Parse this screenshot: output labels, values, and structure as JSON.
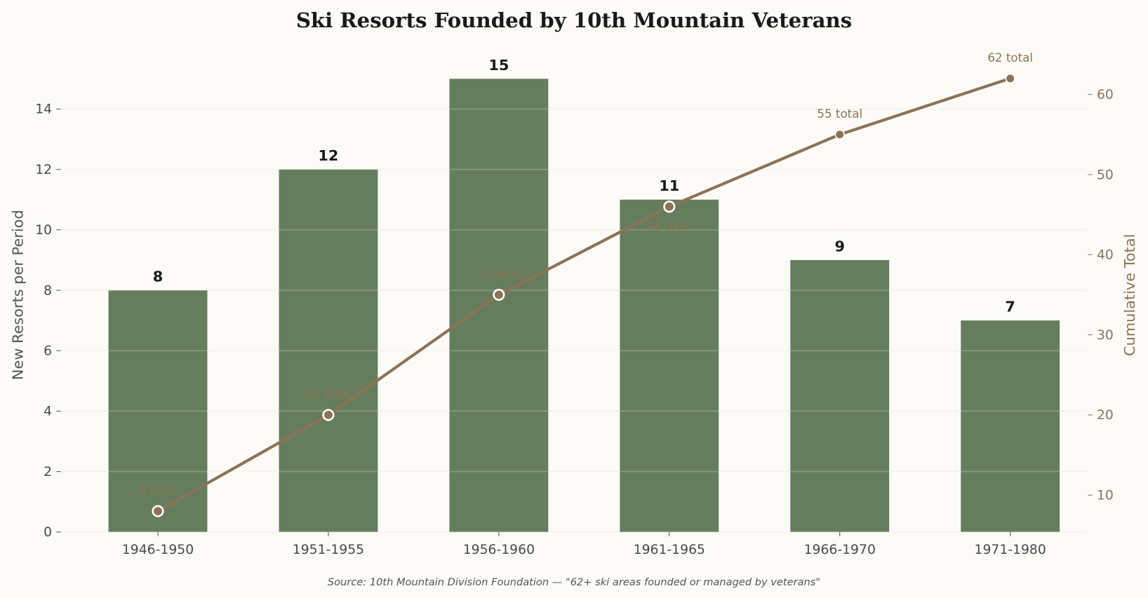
{
  "chart_data": {
    "type": "bar+line",
    "title": "Ski Resorts Founded by 10th Mountain Veterans",
    "source": "Source: 10th Mountain Division Foundation — \"62+ ski areas founded or managed by veterans\"",
    "categories": [
      "1946-1950",
      "1951-1955",
      "1956-1960",
      "1961-1965",
      "1966-1970",
      "1971-1980"
    ],
    "series": [
      {
        "type": "bar",
        "axis": "left",
        "values": [
          8,
          12,
          15,
          11,
          9,
          7
        ],
        "labels": [
          "8",
          "12",
          "15",
          "11",
          "9",
          "7"
        ]
      },
      {
        "type": "line",
        "axis": "right",
        "values": [
          8,
          20,
          35,
          46,
          55,
          62
        ],
        "labels": [
          "8 total",
          "20 total",
          "35 total",
          "46 total",
          "55 total",
          "62 total"
        ]
      }
    ],
    "ylabel": "New Resorts per Period",
    "y2label": "Cumulative Total",
    "ylim": [
      0,
      16.1
    ],
    "y2lim": [
      5.4,
      66.1
    ],
    "yticks": [
      0,
      2,
      4,
      6,
      8,
      10,
      12,
      14
    ],
    "y2ticks": [
      10,
      20,
      30,
      40,
      50,
      60
    ],
    "grid": true,
    "colors": {
      "bar": "#657d5d",
      "line": "#8b7355",
      "background": "#fcfbf8",
      "text": "#4a4a4a",
      "title": "#1a1a1a"
    }
  }
}
